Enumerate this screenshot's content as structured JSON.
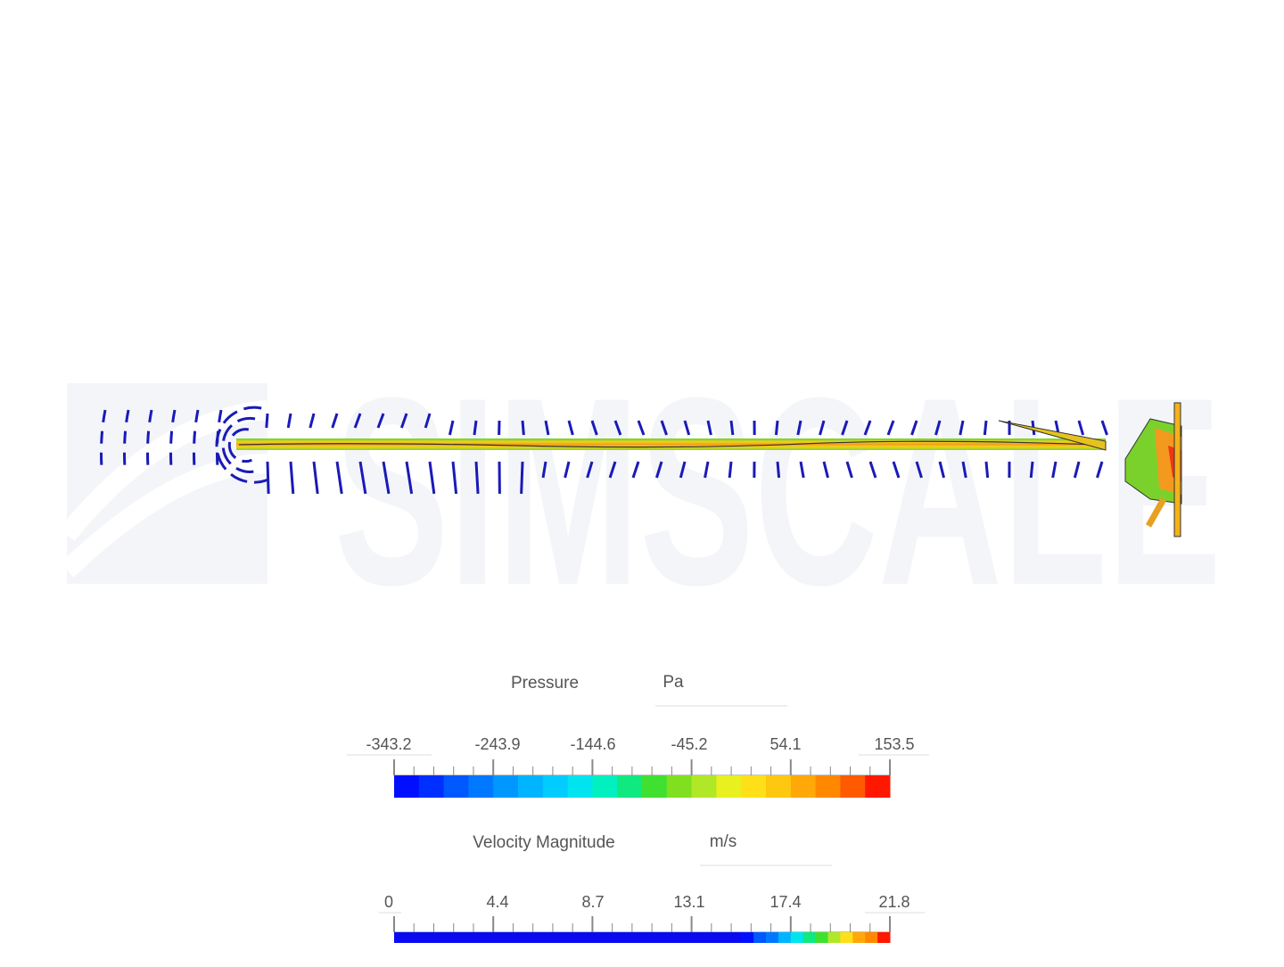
{
  "watermark": "SIMSCALE",
  "legends": [
    {
      "title": "Pressure",
      "unit": "Pa",
      "ticks": [
        "-343.2",
        "-243.9",
        "-144.6",
        "-45.2",
        "54.1",
        "153.5"
      ]
    },
    {
      "title": "Velocity Magnitude",
      "unit": "m/s",
      "ticks": [
        "0",
        "4.4",
        "8.7",
        "13.1",
        "17.4",
        "21.8"
      ]
    }
  ]
}
